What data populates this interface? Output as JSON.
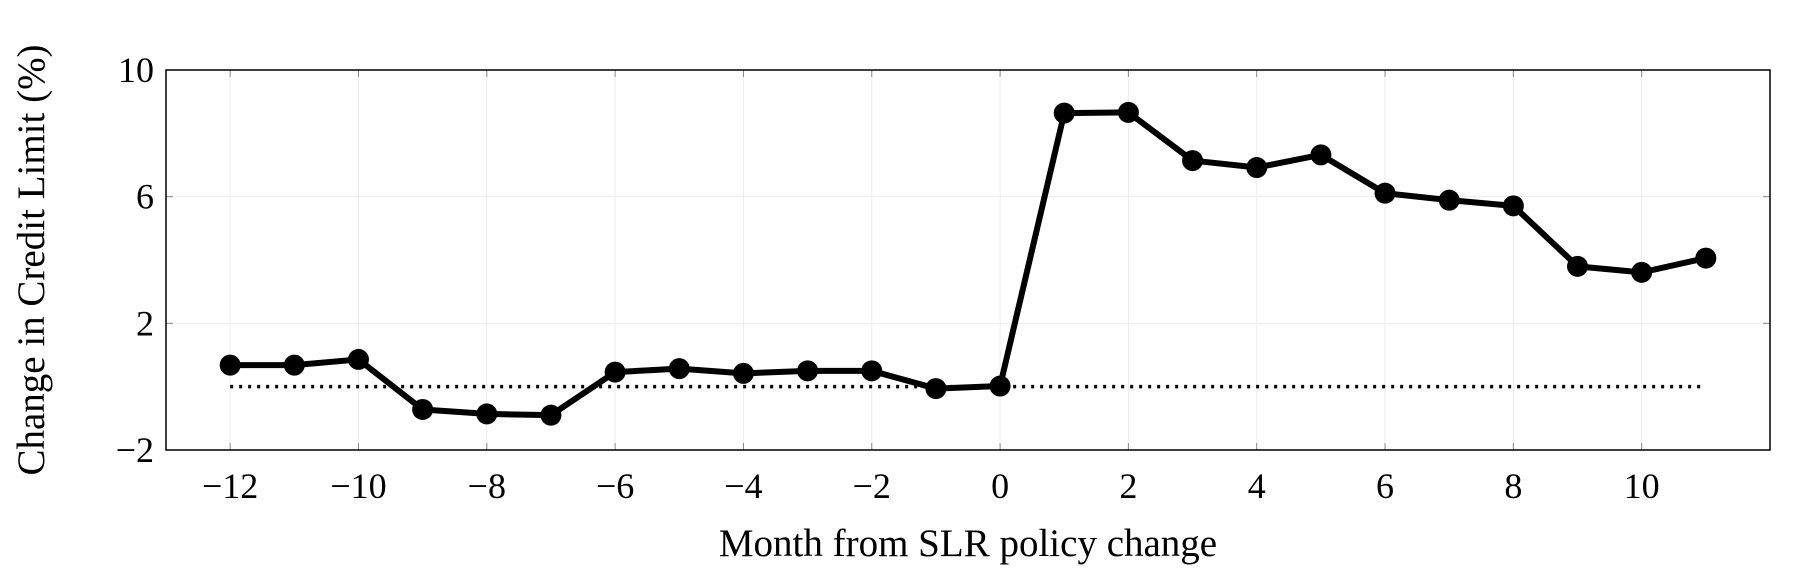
{
  "chart_data": {
    "type": "line",
    "title": "",
    "xlabel": "Month from SLR policy change",
    "ylabel": "Change in Credit Limit (%)",
    "xlim": [
      -13,
      12
    ],
    "ylim": [
      -2,
      10
    ],
    "xticks": [
      -12,
      -10,
      -8,
      -6,
      -4,
      -2,
      0,
      2,
      4,
      6,
      8,
      10
    ],
    "xtick_labels": [
      "−12",
      "−10",
      "−8",
      "−6",
      "−4",
      "−2",
      "0",
      "2",
      "4",
      "6",
      "8",
      "10"
    ],
    "yticks": [
      -2,
      2,
      6,
      10
    ],
    "ytick_labels": [
      "−2",
      "2",
      "6",
      "10"
    ],
    "grid": true,
    "x": [
      -12,
      -11,
      -10,
      -9,
      -8,
      -7,
      -6,
      -5,
      -4,
      -3,
      -2,
      -1,
      0,
      1,
      2,
      3,
      4,
      5,
      6,
      7,
      8,
      9,
      10,
      11
    ],
    "series": [
      {
        "values": [
          0.68,
          0.68,
          0.86,
          -0.72,
          -0.86,
          -0.9,
          0.46,
          0.57,
          0.42,
          0.5,
          0.5,
          -0.06,
          0.02,
          8.64,
          8.66,
          7.14,
          6.92,
          7.32,
          6.11,
          5.89,
          5.71,
          3.8,
          3.61,
          4.06
        ],
        "color": "#000000",
        "marker": "circle"
      }
    ],
    "reference_line": {
      "y": 0,
      "x_range": [
        -12,
        11
      ],
      "style": "dotted",
      "color": "#000000"
    }
  }
}
